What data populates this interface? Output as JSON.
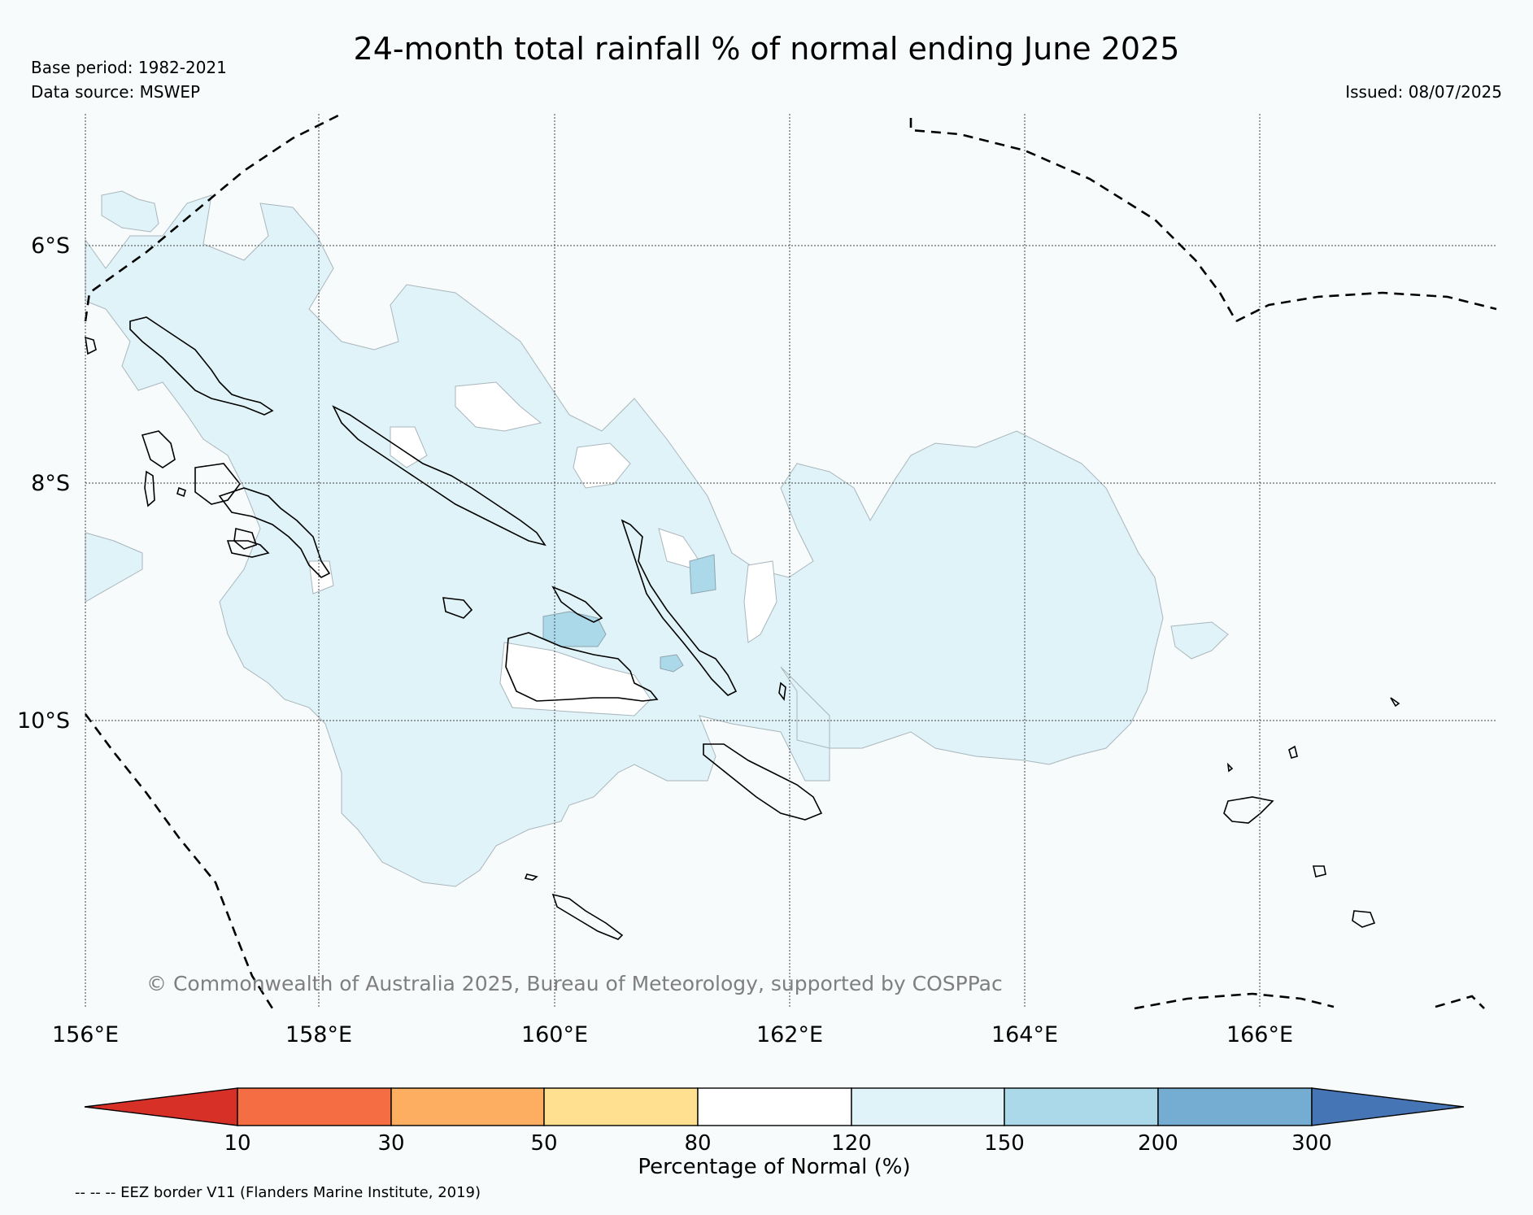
{
  "title": "24-month total rainfall % of normal ending June 2025",
  "base_period": "Base period: 1982-2021",
  "data_source": "Data source: MSWEP",
  "issued": "Issued: 08/07/2025",
  "credit": "© Commonwealth of Australia 2025, Bureau of Meteorology, supported by COSPPac",
  "footer": "-- -- -- EEZ border V11 (Flanders Marine Institute, 2019)",
  "map": {
    "lon_labels": [
      "156°E",
      "158°E",
      "160°E",
      "162°E",
      "164°E",
      "166°E"
    ],
    "lat_labels": [
      "6°S",
      "8°S",
      "10°S"
    ]
  },
  "colorbar": {
    "label": "Percentage of Normal (%)",
    "ticks": [
      "10",
      "30",
      "50",
      "80",
      "120",
      "150",
      "200",
      "300"
    ],
    "colors": [
      "#d73027",
      "#f46d43",
      "#fdae61",
      "#fee090",
      "#ffffff",
      "#e0f3f8",
      "#abd9e9",
      "#74add1",
      "#4575b4"
    ]
  },
  "colors": {
    "land": "#ffffff",
    "shade_120_150": "#e0f3f8",
    "shade_150_200": "#abd9e9"
  }
}
